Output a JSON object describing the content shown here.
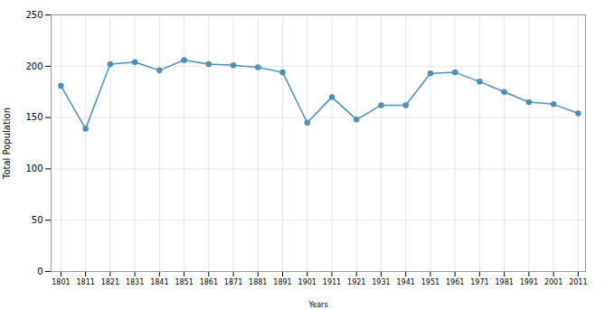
{
  "chart_data": {
    "type": "line",
    "x": [
      1801,
      1811,
      1821,
      1831,
      1841,
      1851,
      1861,
      1871,
      1881,
      1891,
      1901,
      1911,
      1921,
      1931,
      1941,
      1951,
      1961,
      1971,
      1981,
      1991,
      2001,
      2011
    ],
    "values": [
      181,
      139,
      202,
      204,
      196,
      206,
      202,
      201,
      199,
      194,
      145,
      170,
      148,
      162,
      162,
      193,
      194,
      185,
      175,
      165,
      163,
      154
    ],
    "color": "#4a90b8",
    "marker": "circle",
    "xlabel": "Years",
    "ylabel": "Total Population",
    "xlim": [
      1797,
      2014
    ],
    "xticks": [
      1801,
      1811,
      1821,
      1831,
      1841,
      1851,
      1861,
      1871,
      1881,
      1891,
      1901,
      1911,
      1921,
      1931,
      1941,
      1951,
      1961,
      1971,
      1981,
      1991,
      2001,
      2011
    ],
    "ylim": [
      0,
      250
    ],
    "yticks": [
      0,
      50,
      100,
      150,
      200,
      250
    ],
    "grid": true
  }
}
